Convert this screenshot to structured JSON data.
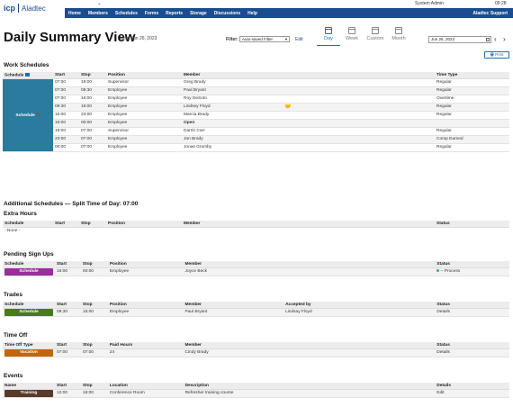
{
  "header": {
    "logo_icp": "icp",
    "logo_brand": "Aladtec",
    "user": "System Admin",
    "clock": "09:28",
    "support": "Aladtec Support",
    "nav": [
      "Home",
      "Members",
      "Schedules",
      "Forms",
      "Reports",
      "Storage",
      "Discussions",
      "Help"
    ]
  },
  "page": {
    "title": "Daily Summary View",
    "date": "Mon, Jun 26, 2023",
    "filter_label": "Filter:",
    "filter_value": "Auto-saved Filter",
    "edit": "Edit",
    "views": [
      "Day",
      "Week",
      "Custom",
      "Month"
    ],
    "active_view": "Day",
    "date_input": "Jun 26, 2023",
    "prev": "‹",
    "next": "›",
    "print": "Print"
  },
  "work": {
    "title": "Work Schedules",
    "headers": [
      "Schedule",
      "Start",
      "Stop",
      "Position",
      "Member",
      "",
      "Time Type"
    ],
    "schedule_label": "Schedule",
    "rows": [
      {
        "start": "07:00",
        "stop": "19:00",
        "position": "Supervisor",
        "member": "Greg Brady",
        "note": "",
        "type": "Regular"
      },
      {
        "start": "07:00",
        "stop": "09:30",
        "position": "Employee",
        "member": "Paul Bryant",
        "note": "",
        "type": "Regular"
      },
      {
        "start": "07:00",
        "stop": "16:00",
        "position": "Employee",
        "member": "Roy DeSoto",
        "note": "",
        "type": "Overtime"
      },
      {
        "start": "09:30",
        "stop": "15:00",
        "position": "Employee",
        "member": "Lindsey Floyd",
        "note": "handshake",
        "type": "Regular"
      },
      {
        "start": "15:00",
        "stop": "23:00",
        "position": "Employee",
        "member": "Marcia Brady",
        "note": "",
        "type": "Regular"
      },
      {
        "start": "16:00",
        "stop": "00:00",
        "position": "Employee",
        "member": "Open",
        "note": "",
        "type": ""
      },
      {
        "start": "19:00",
        "stop": "07:00",
        "position": "Supervisor",
        "member": "Darrin Carr",
        "note": "",
        "type": "Regular"
      },
      {
        "start": "23:00",
        "stop": "07:00",
        "position": "Employee",
        "member": "Jan Brady",
        "note": "",
        "type": "Comp Earned"
      },
      {
        "start": "00:00",
        "stop": "07:00",
        "position": "Employee",
        "member": "Jonas Grumby",
        "note": "",
        "type": "Regular"
      }
    ]
  },
  "additional": {
    "title": "Additional Schedules — Split Time of Day: 07:00"
  },
  "extra": {
    "title": "Extra Hours",
    "headers": [
      "Schedule",
      "Start",
      "Stop",
      "Position",
      "Member",
      "Status"
    ],
    "none": "- None -"
  },
  "pending": {
    "title": "Pending Sign Ups",
    "headers": [
      "Schedule",
      "Start",
      "Stop",
      "Position",
      "Member",
      "Status"
    ],
    "row": {
      "chip": "Schedule",
      "start": "16:00",
      "stop": "00:00",
      "position": "Employee",
      "member": "Joyce Beck",
      "status": "-- Process"
    },
    "chip_color": "#9c2d9c"
  },
  "trades": {
    "title": "Trades",
    "headers": [
      "Schedule",
      "Start",
      "Stop",
      "Position",
      "Member",
      "Accepted by",
      "Status"
    ],
    "row": {
      "chip": "Schedule",
      "start": "09:30",
      "stop": "15:00",
      "position": "Employee",
      "member": "Paul Bryant",
      "accepted": "Lindsay Floyd",
      "status": "Details"
    },
    "chip_color": "#4a7a1e"
  },
  "timeoff": {
    "title": "Time Off",
    "headers": [
      "Time Off Type",
      "Start",
      "Stop",
      "Paid Hours",
      "Member",
      "Status"
    ],
    "row": {
      "chip": "Vacation",
      "start": "07:00",
      "stop": "07:00",
      "hours": "24",
      "member": "Cindy Brady",
      "status": "Details"
    },
    "chip_color": "#c4660a"
  },
  "events": {
    "title": "Events",
    "headers": [
      "Name",
      "Start",
      "Stop",
      "Location",
      "Description",
      "Details"
    ],
    "row": {
      "chip": "Training",
      "start": "12:00",
      "stop": "16:00",
      "location": "Conference Room",
      "description": "Refresher training course",
      "details": "Edit"
    },
    "chip_color": "#5a3a28"
  }
}
